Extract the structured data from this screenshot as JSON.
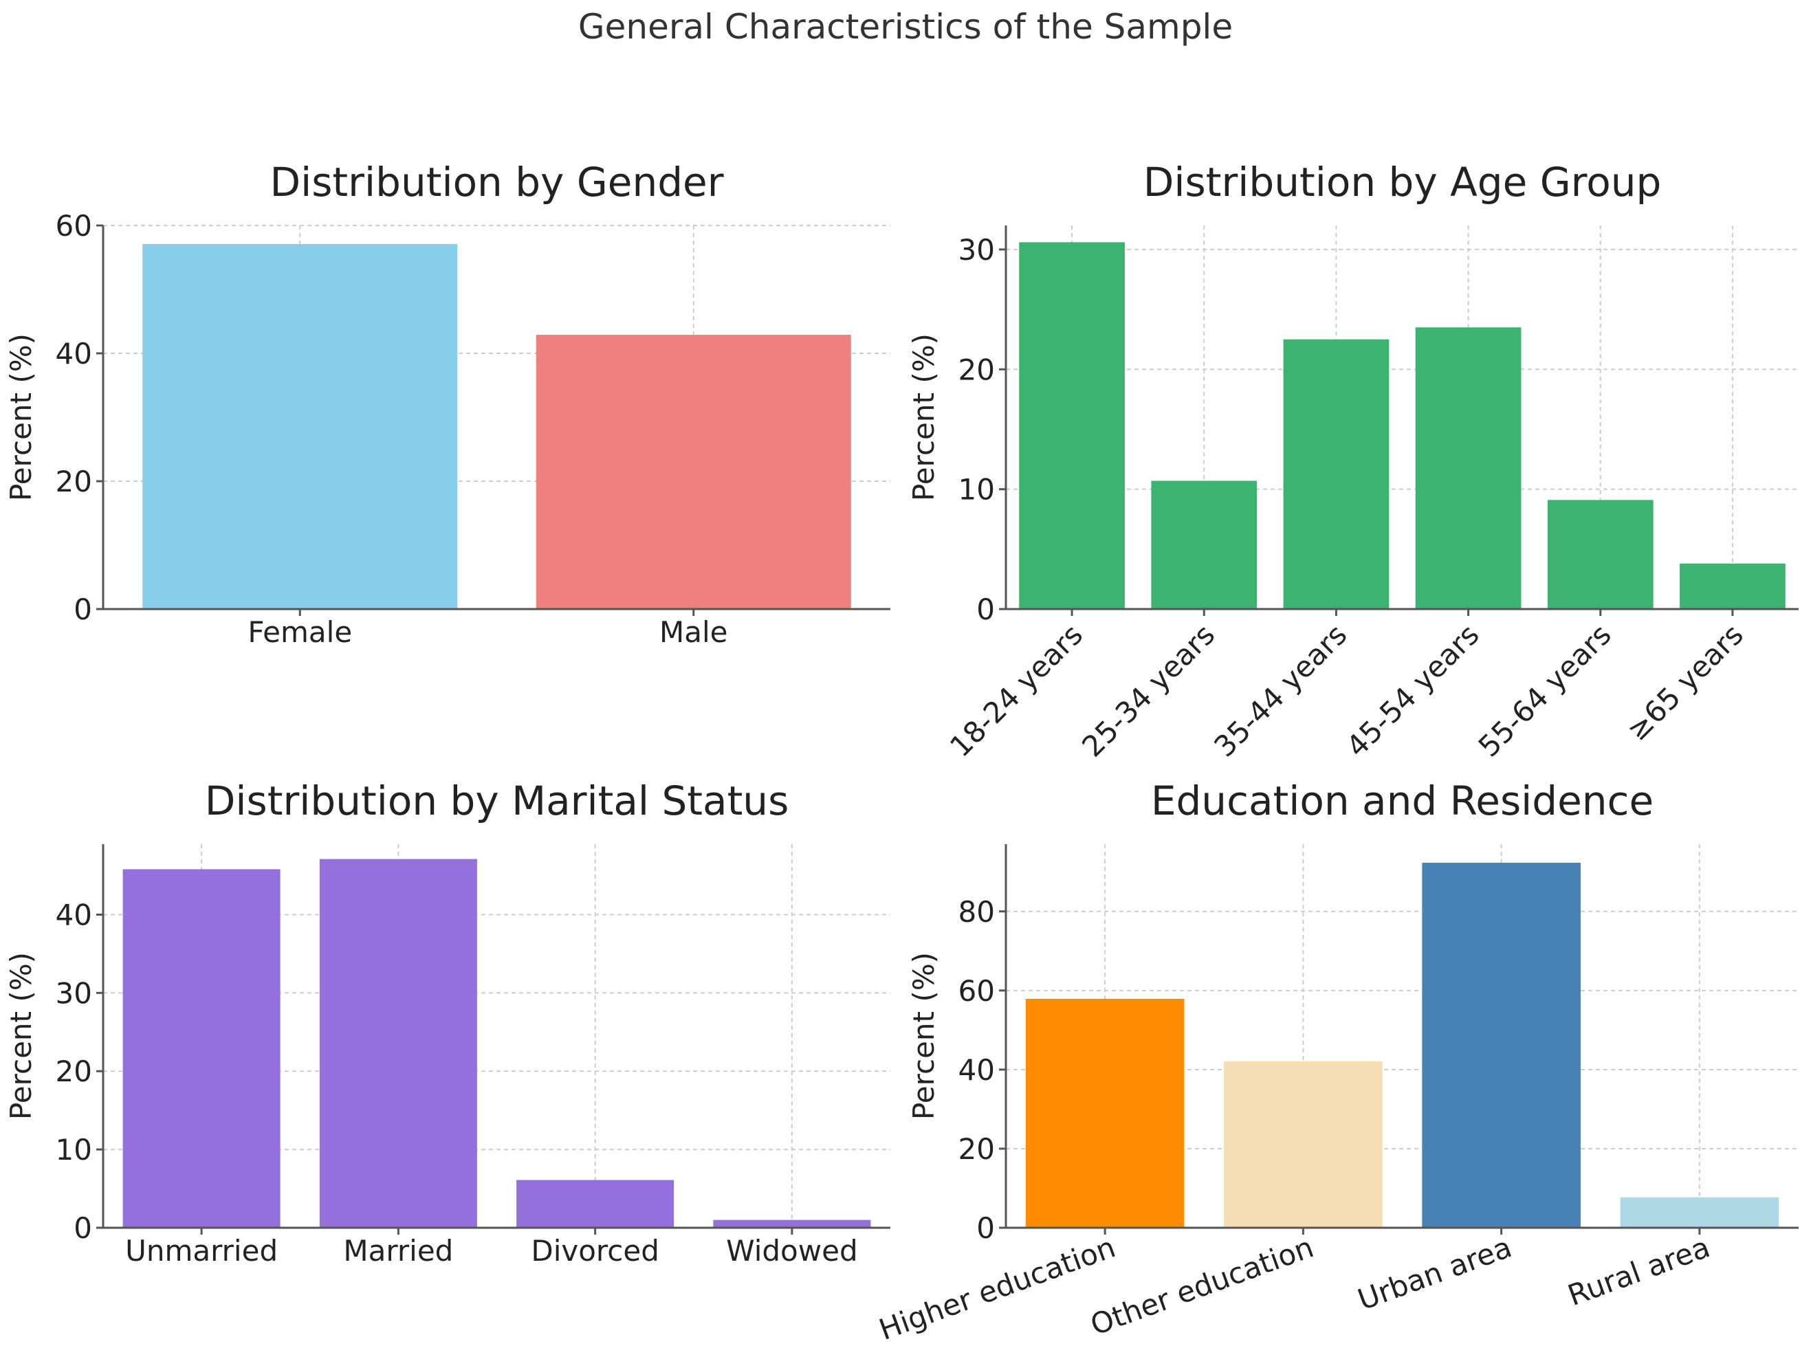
{
  "title": "General Characteristics of the Sample",
  "chart_data": [
    {
      "type": "bar",
      "title": "Distribution by Gender",
      "xlabel": "",
      "ylabel": "Percent (%)",
      "categories": [
        "Female",
        "Male"
      ],
      "values": [
        57.1,
        42.9
      ],
      "colors": [
        "#87ceeb",
        "#f08080"
      ],
      "ylim": [
        0,
        60
      ],
      "yticks": [
        0,
        20,
        40,
        60
      ],
      "xtick_rotation": 0,
      "grid": true
    },
    {
      "type": "bar",
      "title": "Distribution by Age Group",
      "xlabel": "",
      "ylabel": "Percent (%)",
      "categories": [
        "18-24 years",
        "25-34 years",
        "35-44 years",
        "45-54 years",
        "55-64 years",
        "≥65 years"
      ],
      "values": [
        30.6,
        10.7,
        22.5,
        23.5,
        9.1,
        3.8
      ],
      "colors": [
        "#3cb371"
      ],
      "ylim": [
        0,
        32
      ],
      "yticks": [
        0,
        10,
        20,
        30
      ],
      "xtick_rotation": -45,
      "grid": true
    },
    {
      "type": "bar",
      "title": "Distribution by Marital Status",
      "xlabel": "",
      "ylabel": "Percent (%)",
      "categories": [
        "Unmarried",
        "Married",
        "Divorced",
        "Widowed"
      ],
      "values": [
        45.8,
        47.1,
        6.1,
        1.0
      ],
      "colors": [
        "#9370db"
      ],
      "ylim": [
        0,
        49
      ],
      "yticks": [
        0,
        10,
        20,
        30,
        40
      ],
      "xtick_rotation": 0,
      "grid": true
    },
    {
      "type": "bar",
      "title": "Education and Residence",
      "xlabel": "",
      "ylabel": "Percent (%)",
      "categories": [
        "Higher education",
        "Other education",
        "Urban area",
        "Rural area"
      ],
      "values": [
        57.9,
        42.1,
        92.3,
        7.7
      ],
      "colors": [
        "#ff8c00",
        "#f5deb3",
        "#4682b4",
        "#add8e6"
      ],
      "ylim": [
        0,
        97
      ],
      "yticks": [
        0,
        20,
        40,
        60,
        80
      ],
      "xtick_rotation": -20,
      "grid": true
    }
  ]
}
